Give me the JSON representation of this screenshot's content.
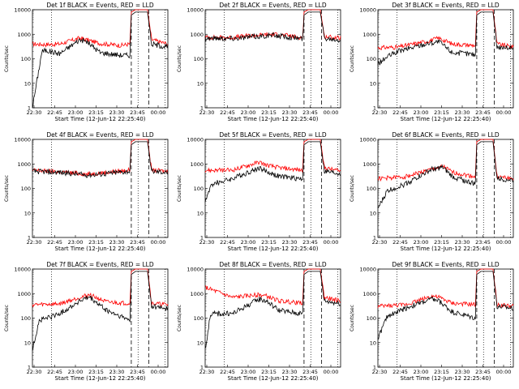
{
  "chart_data": [
    {
      "type": "line",
      "title": "Det 1f BLACK = Events, RED = LLD",
      "xlabel": "Start Time (12-Jun-12 22:25:40)",
      "ylabel": "Counts/sec",
      "xticks": [
        "22:30",
        "22:45",
        "23:00",
        "23:15",
        "23:30",
        "23:45",
        "00:00"
      ],
      "yticks": [
        "1",
        "10",
        "100",
        "1000",
        "10000"
      ],
      "ylim": [
        1,
        10000
      ],
      "scale": "log",
      "events": [
        [
          0.0,
          0
        ],
        [
          0.07,
          200
        ],
        [
          0.1,
          220
        ],
        [
          0.2,
          160
        ],
        [
          0.35,
          600
        ],
        [
          0.4,
          500
        ],
        [
          0.5,
          180
        ],
        [
          0.65,
          140
        ],
        [
          0.72,
          140
        ],
        [
          0.73,
          6000
        ],
        [
          0.76,
          8000
        ],
        [
          0.85,
          8000
        ],
        [
          0.88,
          400
        ],
        [
          1.0,
          300
        ]
      ],
      "lld": [
        [
          0.0,
          400
        ],
        [
          0.1,
          380
        ],
        [
          0.2,
          400
        ],
        [
          0.35,
          700
        ],
        [
          0.4,
          600
        ],
        [
          0.5,
          420
        ],
        [
          0.65,
          350
        ],
        [
          0.72,
          400
        ],
        [
          0.73,
          8000
        ],
        [
          0.76,
          10000
        ],
        [
          0.85,
          10000
        ],
        [
          0.88,
          600
        ],
        [
          1.0,
          400
        ]
      ],
      "vlines_dotted": [
        0.14,
        0.78,
        0.98
      ],
      "vlines_dashed": [
        0.73,
        0.86
      ]
    },
    {
      "type": "line",
      "title": "Det 2f BLACK = Events, RED = LLD",
      "xlabel": "Start Time (12-Jun-12 22:25:40)",
      "ylabel": "Counts/sec",
      "xticks": [
        "22:30",
        "22:45",
        "23:00",
        "23:15",
        "23:30",
        "23:45",
        "00:00"
      ],
      "yticks": [
        "1",
        "10",
        "100",
        "1000",
        "10000"
      ],
      "ylim": [
        1,
        10000
      ],
      "scale": "log",
      "events": [
        [
          0.0,
          700
        ],
        [
          0.2,
          680
        ],
        [
          0.3,
          750
        ],
        [
          0.5,
          900
        ],
        [
          0.6,
          800
        ],
        [
          0.72,
          650
        ],
        [
          0.73,
          6000
        ],
        [
          0.76,
          8000
        ],
        [
          0.85,
          8000
        ],
        [
          0.88,
          700
        ],
        [
          1.0,
          600
        ]
      ],
      "lld": [
        [
          0.0,
          750
        ],
        [
          0.2,
          730
        ],
        [
          0.3,
          850
        ],
        [
          0.5,
          1000
        ],
        [
          0.6,
          900
        ],
        [
          0.72,
          720
        ],
        [
          0.73,
          8000
        ],
        [
          0.76,
          10000
        ],
        [
          0.85,
          10000
        ],
        [
          0.88,
          800
        ],
        [
          1.0,
          700
        ]
      ],
      "vlines_dotted": [
        0.14,
        0.78,
        0.98
      ],
      "vlines_dashed": [
        0.73,
        0.86
      ]
    },
    {
      "type": "line",
      "title": "Det 3f BLACK = Events, RED = LLD",
      "xlabel": "Start Time (12-Jun-12 22:25:40)",
      "ylabel": "Counts/sec",
      "xticks": [
        "22:30",
        "22:45",
        "23:00",
        "23:15",
        "23:30",
        "23:45",
        "00:00"
      ],
      "yticks": [
        "1",
        "10",
        "100",
        "1000",
        "10000"
      ],
      "ylim": [
        1,
        10000
      ],
      "scale": "log",
      "events": [
        [
          0.0,
          60
        ],
        [
          0.07,
          120
        ],
        [
          0.15,
          200
        ],
        [
          0.35,
          400
        ],
        [
          0.45,
          500
        ],
        [
          0.55,
          180
        ],
        [
          0.72,
          150
        ],
        [
          0.73,
          6000
        ],
        [
          0.76,
          8000
        ],
        [
          0.85,
          8000
        ],
        [
          0.88,
          300
        ],
        [
          1.0,
          280
        ]
      ],
      "lld": [
        [
          0.0,
          280
        ],
        [
          0.15,
          300
        ],
        [
          0.35,
          500
        ],
        [
          0.45,
          700
        ],
        [
          0.55,
          400
        ],
        [
          0.72,
          350
        ],
        [
          0.73,
          8000
        ],
        [
          0.76,
          10000
        ],
        [
          0.85,
          10000
        ],
        [
          0.88,
          400
        ],
        [
          1.0,
          300
        ]
      ],
      "vlines_dotted": [
        0.14,
        0.78,
        0.98
      ],
      "vlines_dashed": [
        0.73,
        0.86
      ]
    },
    {
      "type": "line",
      "title": "Det 4f BLACK = Events, RED = LLD",
      "xlabel": "Start Time (12-Jun-12 22:25:40)",
      "ylabel": "Counts/sec",
      "xticks": [
        "22:30",
        "22:45",
        "23:00",
        "23:15",
        "23:30",
        "23:45",
        "00:00"
      ],
      "yticks": [
        "1",
        "10",
        "100",
        "1000",
        "10000"
      ],
      "ylim": [
        1,
        10000
      ],
      "scale": "log",
      "events": [
        [
          0.0,
          500
        ],
        [
          0.2,
          450
        ],
        [
          0.4,
          350
        ],
        [
          0.55,
          400
        ],
        [
          0.72,
          500
        ],
        [
          0.73,
          6000
        ],
        [
          0.76,
          8000
        ],
        [
          0.85,
          8000
        ],
        [
          0.88,
          500
        ],
        [
          1.0,
          450
        ]
      ],
      "lld": [
        [
          0.0,
          550
        ],
        [
          0.2,
          480
        ],
        [
          0.4,
          380
        ],
        [
          0.55,
          450
        ],
        [
          0.72,
          560
        ],
        [
          0.73,
          8000
        ],
        [
          0.76,
          10000
        ],
        [
          0.85,
          10000
        ],
        [
          0.88,
          550
        ],
        [
          1.0,
          500
        ]
      ],
      "vlines_dotted": [
        0.14,
        0.78,
        0.98
      ],
      "vlines_dashed": [
        0.73,
        0.86
      ]
    },
    {
      "type": "line",
      "title": "Det 5f BLACK = Events, RED = LLD",
      "xlabel": "Start Time (12-Jun-12 22:25:40)",
      "ylabel": "Counts/sec",
      "xticks": [
        "22:30",
        "22:45",
        "23:00",
        "23:15",
        "23:30",
        "23:45",
        "00:00"
      ],
      "yticks": [
        "1",
        "10",
        "100",
        "1000",
        "10000"
      ],
      "ylim": [
        1,
        10000
      ],
      "scale": "log",
      "events": [
        [
          0.0,
          30
        ],
        [
          0.05,
          150
        ],
        [
          0.2,
          250
        ],
        [
          0.4,
          700
        ],
        [
          0.45,
          500
        ],
        [
          0.55,
          300
        ],
        [
          0.72,
          250
        ],
        [
          0.73,
          6000
        ],
        [
          0.76,
          8000
        ],
        [
          0.85,
          8000
        ],
        [
          0.88,
          500
        ],
        [
          1.0,
          400
        ]
      ],
      "lld": [
        [
          0.0,
          550
        ],
        [
          0.2,
          550
        ],
        [
          0.4,
          1200
        ],
        [
          0.45,
          900
        ],
        [
          0.55,
          700
        ],
        [
          0.72,
          550
        ],
        [
          0.73,
          8000
        ],
        [
          0.76,
          10000
        ],
        [
          0.85,
          10000
        ],
        [
          0.88,
          700
        ],
        [
          1.0,
          500
        ]
      ],
      "vlines_dotted": [
        0.14,
        0.78,
        0.98
      ],
      "vlines_dashed": [
        0.73,
        0.86
      ]
    },
    {
      "type": "line",
      "title": "Det 6f BLACK = Events, RED = LLD",
      "xlabel": "Start Time (12-Jun-12 22:25:40)",
      "ylabel": "Counts/sec",
      "xticks": [
        "22:30",
        "22:45",
        "23:00",
        "23:15",
        "23:30",
        "23:45",
        "00:00"
      ],
      "yticks": [
        "1",
        "10",
        "100",
        "1000",
        "10000"
      ],
      "ylim": [
        1,
        10000
      ],
      "scale": "log",
      "events": [
        [
          0.0,
          15
        ],
        [
          0.07,
          80
        ],
        [
          0.2,
          150
        ],
        [
          0.4,
          600
        ],
        [
          0.48,
          700
        ],
        [
          0.55,
          300
        ],
        [
          0.72,
          150
        ],
        [
          0.73,
          6000
        ],
        [
          0.76,
          8000
        ],
        [
          0.85,
          8000
        ],
        [
          0.88,
          250
        ],
        [
          1.0,
          220
        ]
      ],
      "lld": [
        [
          0.0,
          250
        ],
        [
          0.2,
          300
        ],
        [
          0.4,
          600
        ],
        [
          0.48,
          800
        ],
        [
          0.55,
          450
        ],
        [
          0.72,
          300
        ],
        [
          0.73,
          8000
        ],
        [
          0.76,
          10000
        ],
        [
          0.85,
          10000
        ],
        [
          0.88,
          300
        ],
        [
          1.0,
          250
        ]
      ],
      "vlines_dotted": [
        0.14,
        0.78,
        0.98
      ],
      "vlines_dashed": [
        0.73,
        0.86
      ]
    },
    {
      "type": "line",
      "title": "Det 7f BLACK = Events, RED = LLD",
      "xlabel": "Start Time (12-Jun-12 22:25:40)",
      "ylabel": "Counts/sec",
      "xticks": [
        "22:30",
        "22:45",
        "23:00",
        "23:15",
        "23:30",
        "23:45",
        "00:00"
      ],
      "yticks": [
        "1",
        "10",
        "100",
        "1000",
        "10000"
      ],
      "ylim": [
        1,
        10000
      ],
      "scale": "log",
      "events": [
        [
          0.0,
          5
        ],
        [
          0.05,
          80
        ],
        [
          0.2,
          150
        ],
        [
          0.35,
          500
        ],
        [
          0.42,
          700
        ],
        [
          0.55,
          200
        ],
        [
          0.72,
          80
        ],
        [
          0.73,
          6000
        ],
        [
          0.76,
          8000
        ],
        [
          0.85,
          8000
        ],
        [
          0.88,
          300
        ],
        [
          1.0,
          250
        ]
      ],
      "lld": [
        [
          0.0,
          350
        ],
        [
          0.2,
          380
        ],
        [
          0.35,
          700
        ],
        [
          0.42,
          900
        ],
        [
          0.55,
          450
        ],
        [
          0.72,
          400
        ],
        [
          0.73,
          8000
        ],
        [
          0.76,
          10000
        ],
        [
          0.85,
          10000
        ],
        [
          0.88,
          400
        ],
        [
          1.0,
          350
        ]
      ],
      "vlines_dotted": [
        0.14,
        0.78,
        0.98
      ],
      "vlines_dashed": [
        0.73,
        0.86
      ]
    },
    {
      "type": "line",
      "title": "Det 8f BLACK = Events, RED = LLD",
      "xlabel": "Start Time (12-Jun-12 22:25:40)",
      "ylabel": "Counts/sec",
      "xticks": [
        "22:30",
        "22:45",
        "23:00",
        "23:15",
        "23:30",
        "23:45",
        "00:00"
      ],
      "yticks": [
        "1",
        "10",
        "100",
        "1000",
        "10000"
      ],
      "ylim": [
        1,
        10000
      ],
      "scale": "log",
      "events": [
        [
          0.0,
          5
        ],
        [
          0.04,
          150
        ],
        [
          0.2,
          150
        ],
        [
          0.4,
          600
        ],
        [
          0.45,
          500
        ],
        [
          0.55,
          200
        ],
        [
          0.72,
          150
        ],
        [
          0.73,
          6000
        ],
        [
          0.76,
          8000
        ],
        [
          0.85,
          8000
        ],
        [
          0.88,
          500
        ],
        [
          1.0,
          400
        ]
      ],
      "lld": [
        [
          0.0,
          1800
        ],
        [
          0.2,
          700
        ],
        [
          0.4,
          900
        ],
        [
          0.45,
          800
        ],
        [
          0.55,
          500
        ],
        [
          0.72,
          400
        ],
        [
          0.73,
          8000
        ],
        [
          0.76,
          10000
        ],
        [
          0.85,
          10000
        ],
        [
          0.88,
          700
        ],
        [
          1.0,
          500
        ]
      ],
      "vlines_dotted": [
        0.14,
        0.78,
        0.98
      ],
      "vlines_dashed": [
        0.73,
        0.86
      ]
    },
    {
      "type": "line",
      "title": "Det 9f BLACK = Events, RED = LLD",
      "xlabel": "Start Time (12-Jun-12 22:25:40)",
      "ylabel": "Counts/sec",
      "xticks": [
        "22:30",
        "22:45",
        "23:00",
        "23:15",
        "23:30",
        "23:45",
        "00:00"
      ],
      "yticks": [
        "1",
        "10",
        "100",
        "1000",
        "10000"
      ],
      "ylim": [
        1,
        10000
      ],
      "scale": "log",
      "events": [
        [
          0.0,
          15
        ],
        [
          0.07,
          120
        ],
        [
          0.2,
          250
        ],
        [
          0.4,
          600
        ],
        [
          0.45,
          500
        ],
        [
          0.55,
          180
        ],
        [
          0.72,
          100
        ],
        [
          0.73,
          6000
        ],
        [
          0.76,
          8000
        ],
        [
          0.85,
          8000
        ],
        [
          0.88,
          300
        ],
        [
          1.0,
          250
        ]
      ],
      "lld": [
        [
          0.0,
          300
        ],
        [
          0.2,
          350
        ],
        [
          0.4,
          800
        ],
        [
          0.45,
          700
        ],
        [
          0.55,
          400
        ],
        [
          0.72,
          350
        ],
        [
          0.73,
          8000
        ],
        [
          0.76,
          10000
        ],
        [
          0.85,
          10000
        ],
        [
          0.88,
          350
        ],
        [
          1.0,
          300
        ]
      ],
      "vlines_dotted": [
        0.14,
        0.78,
        0.98
      ],
      "vlines_dashed": [
        0.73,
        0.86
      ]
    }
  ],
  "colors": {
    "events": "#000000",
    "lld": "#ff0000"
  }
}
